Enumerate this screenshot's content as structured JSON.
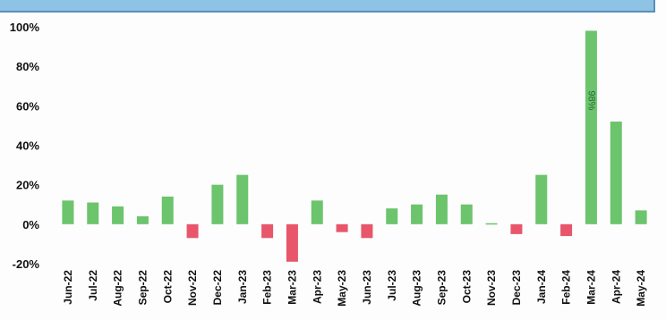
{
  "chart_data": {
    "type": "bar",
    "title": "",
    "xlabel": "",
    "ylabel": "",
    "ylim": [
      -20,
      100
    ],
    "yticks": [
      "100%",
      "80%",
      "60%",
      "40%",
      "20%",
      "0%",
      "-20%"
    ],
    "grid": false,
    "categories": [
      "Jun-22",
      "Jul-22",
      "Aug-22",
      "Sep-22",
      "Oct-22",
      "Nov-22",
      "Dec-22",
      "Jan-23",
      "Feb-23",
      "Mar-23",
      "Apr-23",
      "May-23",
      "Jun-23",
      "Jul-23",
      "Aug-23",
      "Sep-23",
      "Oct-23",
      "Nov-23",
      "Dec-23",
      "Jan-24",
      "Feb-24",
      "Mar-24",
      "Apr-24",
      "May-24"
    ],
    "values": [
      12,
      11,
      9,
      4,
      14,
      -7,
      20,
      25,
      -7,
      -19,
      12,
      -4,
      -7,
      8,
      10,
      15,
      10,
      0.5,
      -5,
      25,
      -6,
      98,
      52,
      7
    ],
    "annotations": [
      {
        "category": "Mar-24",
        "text": "98%"
      }
    ],
    "colors": {
      "positive": "#6cc46c",
      "negative": "#e8566b",
      "axis": "#111111"
    }
  }
}
